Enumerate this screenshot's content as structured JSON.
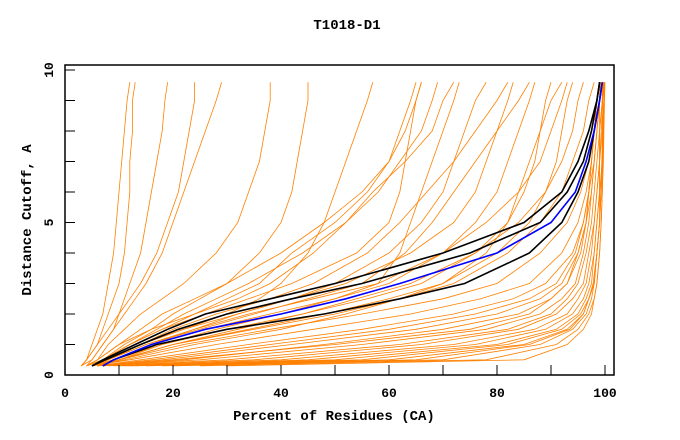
{
  "chart_data": {
    "type": "line",
    "title": "T1018-D1",
    "xlabel": "Percent of Residues (CA)",
    "ylabel": "Distance Cutoff, A",
    "xlim": [
      0,
      101.7
    ],
    "ylim": [
      0,
      10
    ],
    "x_ticks": [
      0,
      20,
      40,
      60,
      80,
      100
    ],
    "x_minor_step": 10,
    "y_ticks": [
      0,
      5,
      10
    ],
    "y_minor_step": 1,
    "grid": false,
    "colors": {
      "models": "#ff8000",
      "highlight": "#000000",
      "reference": "#0000ff"
    },
    "y_levels": [
      0.3,
      0.5,
      1,
      1.5,
      2,
      2.5,
      3,
      4,
      5,
      6,
      7,
      8,
      9,
      9.6
    ],
    "orange_series_x": [
      [
        3,
        4,
        5,
        6,
        7,
        7.5,
        8,
        9,
        9.5,
        10,
        10.5,
        11,
        11.5,
        12
      ],
      [
        3,
        4,
        6,
        7,
        8,
        9,
        10,
        11,
        11.5,
        12,
        12,
        12.5,
        12.5,
        13
      ],
      [
        3,
        5,
        7,
        9,
        10,
        11,
        12,
        14,
        15,
        16,
        17,
        18,
        18.5,
        19
      ],
      [
        4,
        5,
        7,
        9,
        11,
        13,
        15,
        18,
        20,
        22,
        24,
        26,
        28,
        29
      ],
      [
        3,
        4,
        6,
        8,
        10,
        12,
        14,
        17,
        19,
        21,
        22,
        23,
        24,
        24
      ],
      [
        4,
        6,
        8,
        11,
        14,
        18,
        22,
        28,
        32,
        34,
        36,
        37,
        38,
        38
      ],
      [
        4,
        6,
        10,
        14,
        18,
        24,
        30,
        40,
        48,
        55,
        60,
        63,
        65,
        66
      ],
      [
        4,
        7,
        12,
        17,
        22,
        28,
        34,
        44,
        52,
        58,
        62,
        66,
        68,
        69
      ],
      [
        5,
        7,
        12,
        18,
        24,
        30,
        36,
        42,
        50,
        56,
        60,
        62,
        64,
        65
      ],
      [
        4,
        6,
        10,
        16,
        24,
        32,
        38,
        46,
        52,
        57,
        63,
        68,
        70,
        72
      ],
      [
        5,
        8,
        14,
        22,
        30,
        36,
        40,
        45,
        48,
        50,
        52,
        54,
        56,
        57
      ],
      [
        5,
        8,
        14,
        20,
        28,
        38,
        46,
        56,
        62,
        67,
        72,
        76,
        80,
        82
      ],
      [
        5,
        8,
        15,
        25,
        35,
        45,
        55,
        63,
        68,
        72,
        76,
        80,
        84,
        86
      ],
      [
        4,
        7,
        12,
        18,
        26,
        34,
        42,
        54,
        60,
        62,
        63,
        64,
        65,
        66
      ],
      [
        5,
        9,
        16,
        24,
        32,
        42,
        50,
        60,
        66,
        70,
        72,
        74,
        76,
        78
      ],
      [
        5,
        8,
        14,
        22,
        32,
        42,
        52,
        64,
        72,
        76,
        78,
        80,
        82,
        83
      ],
      [
        5,
        9,
        16,
        26,
        38,
        50,
        60,
        70,
        76,
        80,
        82,
        84,
        86,
        87
      ],
      [
        6,
        10,
        18,
        30,
        44,
        56,
        66,
        76,
        82,
        85,
        87,
        88,
        89,
        90
      ],
      [
        5,
        8,
        15,
        24,
        34,
        46,
        58,
        70,
        78,
        84,
        88,
        90,
        92,
        93
      ],
      [
        6,
        10,
        20,
        34,
        48,
        60,
        70,
        80,
        86,
        89,
        91,
        92,
        93,
        94
      ],
      [
        5,
        9,
        18,
        28,
        40,
        50,
        58,
        62,
        64,
        66,
        68,
        70,
        72,
        73
      ],
      [
        4,
        7,
        11,
        16,
        20,
        25,
        30,
        36,
        40,
        42,
        43,
        44,
        45,
        45
      ],
      [
        5,
        10,
        20,
        35,
        50,
        62,
        70,
        78,
        82,
        84,
        86,
        88,
        90,
        92
      ],
      [
        6,
        20,
        50,
        75,
        86,
        90,
        93,
        95,
        96.5,
        97,
        97.5,
        98,
        98.5,
        99
      ],
      [
        8,
        30,
        62,
        82,
        90,
        93,
        95,
        96.5,
        97.5,
        98,
        98.5,
        99,
        99,
        99.5
      ],
      [
        10,
        40,
        72,
        87,
        93,
        95,
        96.5,
        97.5,
        98,
        98.5,
        99,
        99,
        99.5,
        99.5
      ],
      [
        12,
        50,
        80,
        91,
        95,
        96.5,
        97.5,
        98,
        98.5,
        99,
        99,
        99.5,
        99.5,
        99.8
      ],
      [
        15,
        60,
        85,
        93,
        96,
        97,
        98,
        98.5,
        99,
        99,
        99.5,
        99.5,
        99.8,
        99.8
      ],
      [
        20,
        70,
        88,
        94,
        96.5,
        97.5,
        98,
        98.5,
        99,
        99.3,
        99.5,
        99.6,
        99.8,
        99.9
      ],
      [
        25,
        78,
        91,
        95,
        97,
        98,
        98.5,
        99,
        99.3,
        99.5,
        99.6,
        99.7,
        99.8,
        99.9
      ],
      [
        9,
        35,
        66,
        84,
        91,
        94,
        96,
        97,
        98,
        98.5,
        99,
        99,
        99.5,
        99.5
      ],
      [
        7,
        25,
        55,
        78,
        88,
        92,
        94.5,
        96,
        97,
        97.5,
        98,
        98.5,
        99,
        99
      ],
      [
        6,
        18,
        42,
        65,
        80,
        88,
        92,
        95,
        96.5,
        97.5,
        98,
        98.5,
        99,
        99.2
      ],
      [
        6,
        14,
        34,
        55,
        72,
        83,
        89,
        94,
        96,
        97,
        98,
        98.5,
        99,
        99.2
      ],
      [
        5,
        12,
        28,
        46,
        64,
        77,
        86,
        92,
        95,
        96.5,
        97.5,
        98,
        98.5,
        99
      ],
      [
        6,
        16,
        38,
        60,
        76,
        86,
        91,
        94.5,
        96,
        97,
        97.5,
        98,
        98.5,
        99
      ],
      [
        7,
        22,
        48,
        70,
        84,
        90,
        93,
        95.5,
        96.5,
        97,
        97.5,
        98,
        98.5,
        99
      ],
      [
        11,
        45,
        76,
        89,
        94,
        96,
        97,
        98,
        98.5,
        99,
        99,
        99.3,
        99.6,
        99.7
      ],
      [
        13,
        55,
        82,
        92,
        95.5,
        97,
        98,
        98.5,
        99,
        99.2,
        99.4,
        99.6,
        99.8,
        99.8
      ],
      [
        18,
        65,
        86,
        93.5,
        96,
        97,
        97.8,
        98.5,
        99,
        99.3,
        99.5,
        99.7,
        99.8,
        99.9
      ],
      [
        30,
        85,
        93,
        96,
        97.5,
        98,
        98.5,
        99,
        99.3,
        99.5,
        99.7,
        99.8,
        99.9,
        100
      ],
      [
        5,
        10,
        22,
        38,
        55,
        70,
        80,
        88,
        93,
        95.5,
        97,
        98,
        98.5,
        99
      ],
      [
        5,
        11,
        24,
        40,
        52,
        62,
        72,
        82,
        88,
        92,
        94,
        96,
        97,
        98
      ],
      [
        5,
        10,
        20,
        32,
        44,
        54,
        64,
        76,
        84,
        89,
        92,
        94,
        95,
        96
      ]
    ],
    "black_series_x": [
      [
        5,
        7,
        13,
        19,
        26,
        38,
        50,
        70,
        85,
        92,
        95,
        97,
        98.5,
        99
      ],
      [
        5,
        7.5,
        14,
        21,
        30,
        42,
        55,
        75,
        88,
        93,
        96,
        97.5,
        98.5,
        99
      ],
      [
        7,
        9,
        17,
        30,
        48,
        62,
        74,
        86,
        92,
        95,
        97,
        98,
        99,
        99.5
      ]
    ],
    "blue_series_x": [
      7,
      9,
      16,
      26,
      40,
      52,
      62,
      80,
      90,
      94.5,
      96.5,
      98,
      99,
      99.5
    ]
  }
}
